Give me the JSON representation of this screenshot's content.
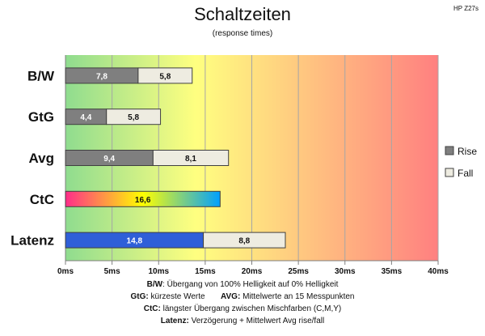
{
  "chart_data": {
    "type": "bar",
    "orientation": "horizontal",
    "stacked": true,
    "title": "Schaltzeiten",
    "subtitle": "(response times)",
    "model": "HP Z27s",
    "categories": [
      "B/W",
      "GtG",
      "Avg",
      "CtC",
      "Latenz"
    ],
    "series": [
      {
        "name": "Rise",
        "values": [
          7.8,
          4.4,
          9.4,
          null,
          14.8
        ],
        "labels": [
          "7,8",
          "4,4",
          "9,4",
          null,
          "14,8"
        ],
        "color": "#7f7f7f"
      },
      {
        "name": "Fall",
        "values": [
          5.8,
          5.8,
          8.1,
          null,
          8.8
        ],
        "labels": [
          "5,8",
          "5,8",
          "8,1",
          null,
          "8,8"
        ],
        "color": "#eeece1"
      }
    ],
    "ctc": {
      "value": 16.6,
      "label": "16,6",
      "colors": [
        "#ff2d8a",
        "#ffff00",
        "#00a0ff"
      ]
    },
    "latenz_rise_color": "#2f5fd8",
    "xlim": [
      0,
      40
    ],
    "xticks": [
      0,
      5,
      10,
      15,
      20,
      25,
      30,
      35,
      40
    ],
    "xtick_labels": [
      "0ms",
      "5ms",
      "10ms",
      "15ms",
      "20ms",
      "25ms",
      "30ms",
      "35ms",
      "40ms"
    ],
    "background_gradient": [
      "#8fdc8f",
      "#ffff80",
      "#ff8080"
    ],
    "grid": "vertical",
    "legend_position": "right"
  },
  "notes": {
    "line1": {
      "key": "B/W",
      "text": ":  Übergang von 100% Helligkeit auf 0% Helligkeit"
    },
    "line2a": {
      "key": "GtG:",
      "text": " kürzeste  Werte"
    },
    "line2b": {
      "key": "AVG:",
      "text": " Mittelwerte  an 15 Messpunkten"
    },
    "line3": {
      "key": "CtC:",
      "text": " längster Übergang  zwischen Mischfarben  (C,M,Y)"
    },
    "line4": {
      "key": "Latenz:",
      "text": " Verzögerung  + Mittelwert  Avg rise/fall"
    }
  }
}
